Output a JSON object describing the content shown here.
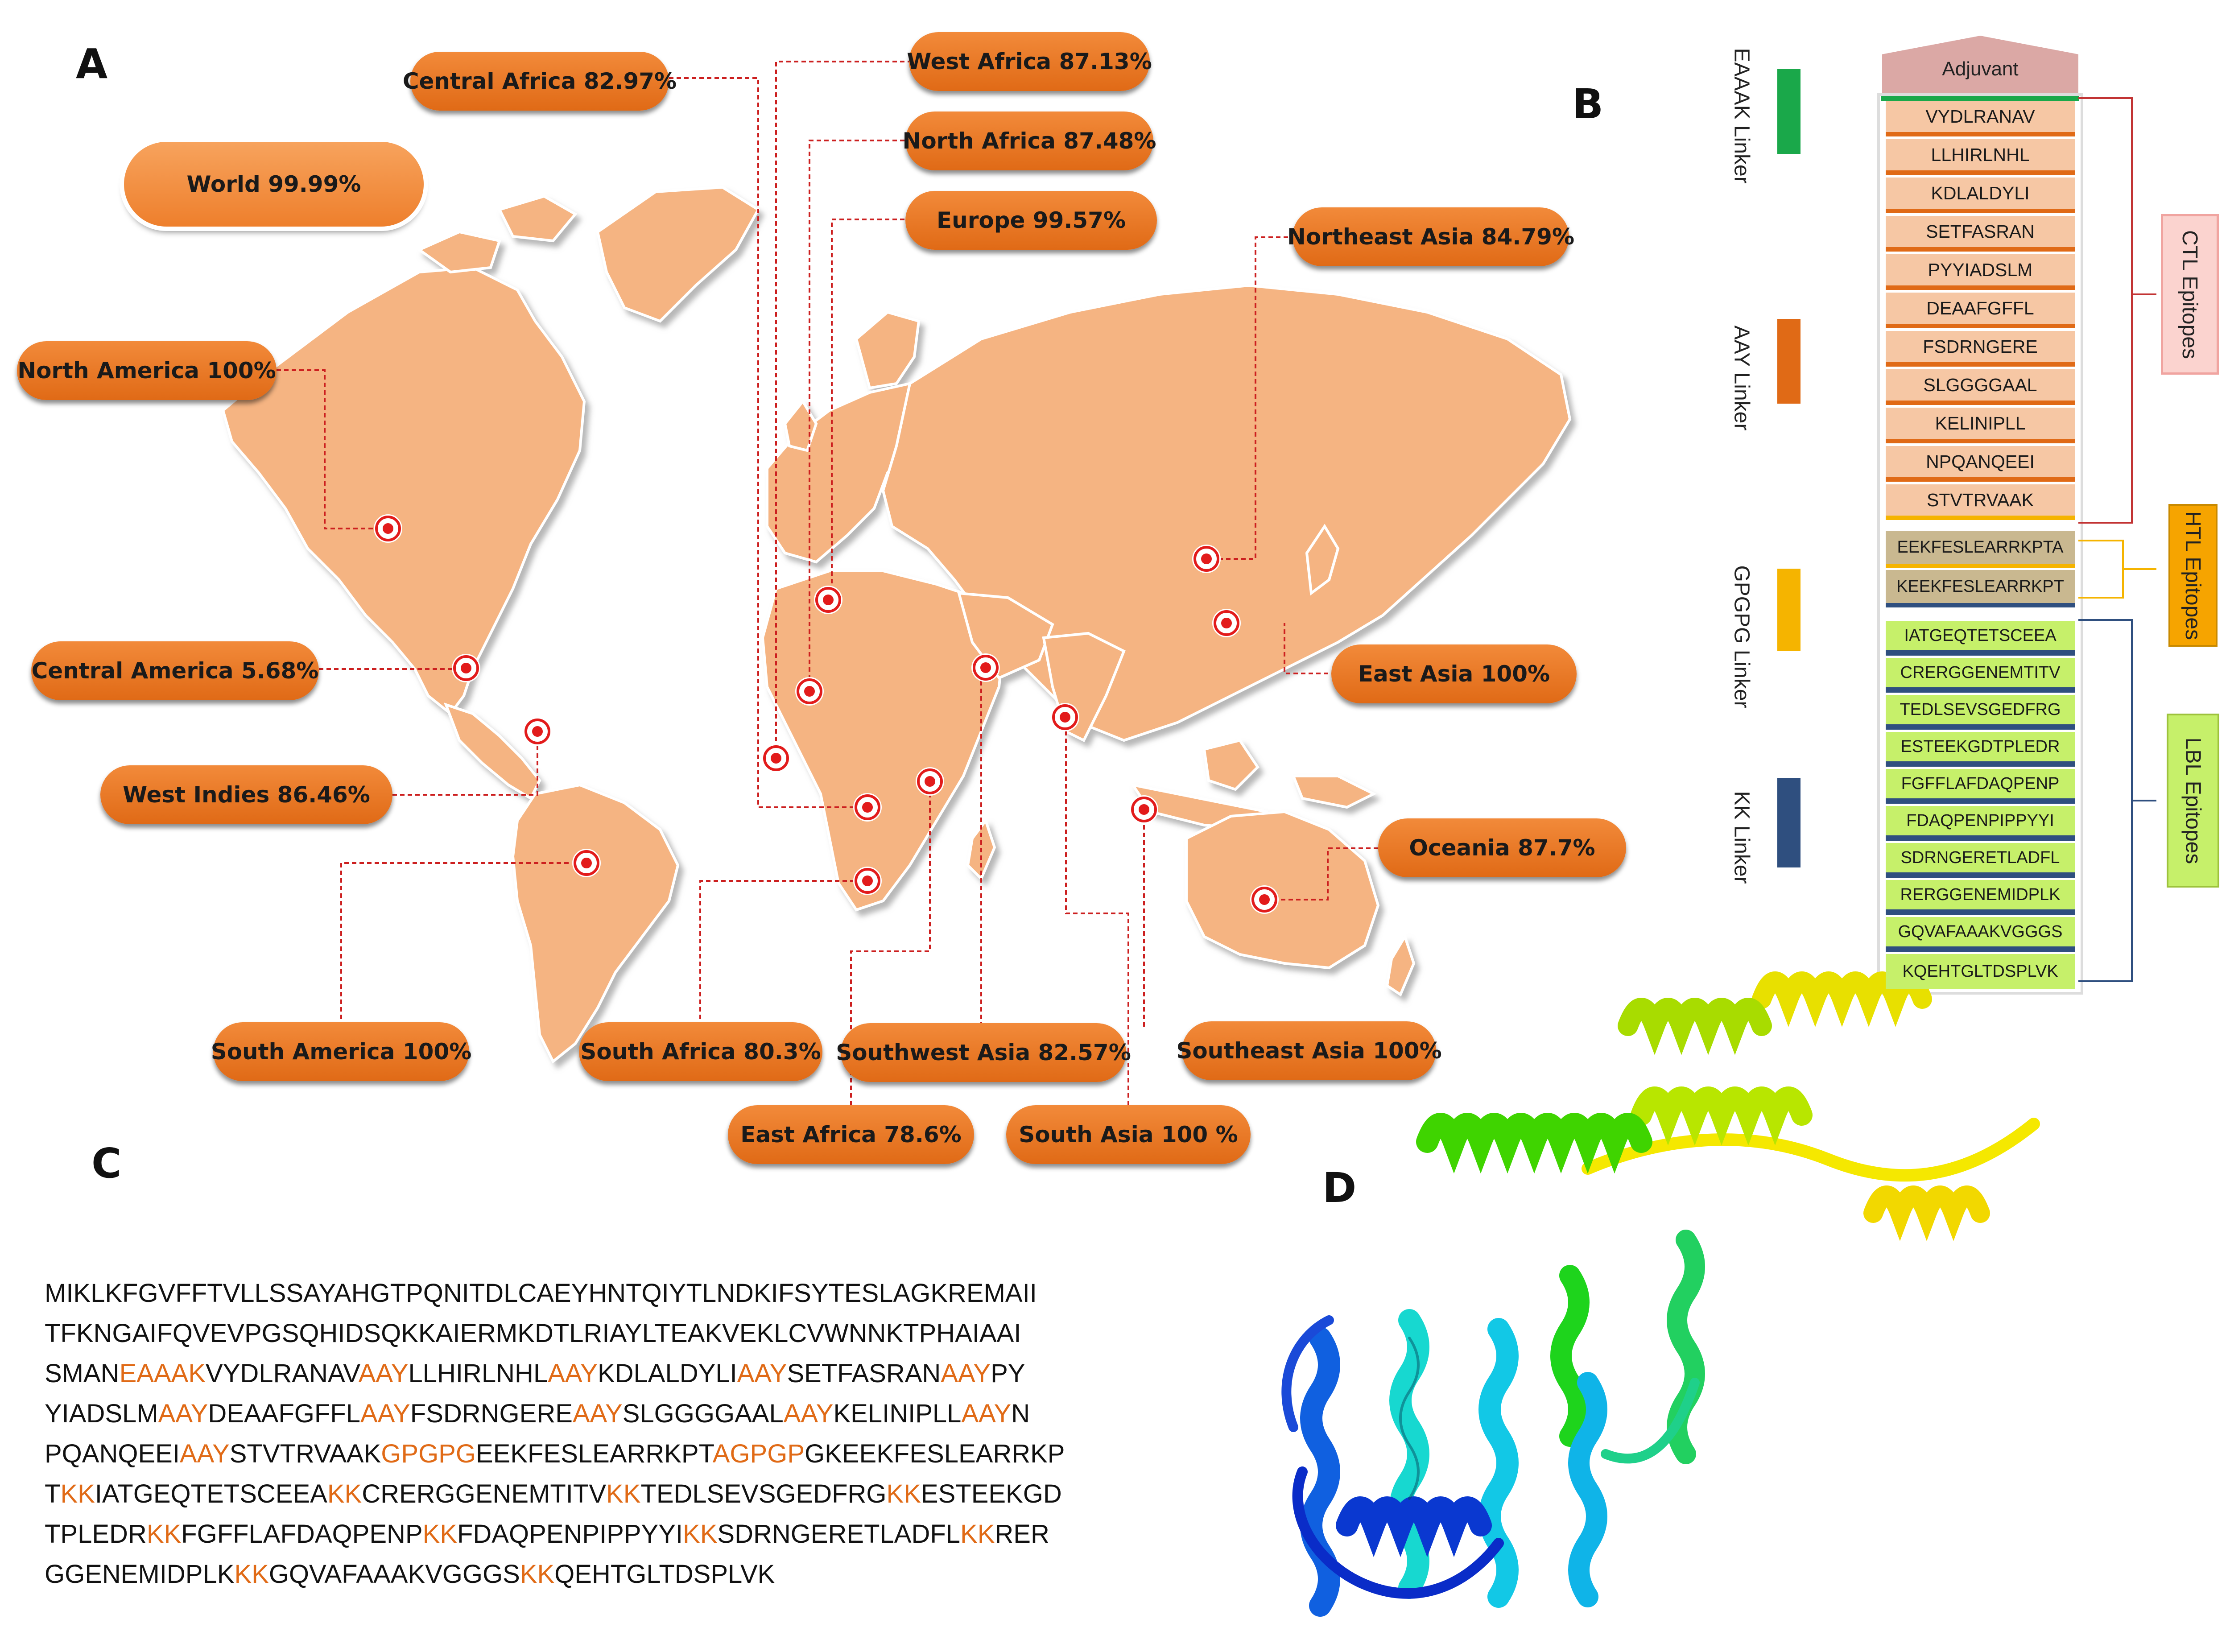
{
  "panels": {
    "a": "A",
    "b": "B",
    "c": "C",
    "d": "D"
  },
  "world": "World 99.99%",
  "regions": [
    {
      "id": "west-africa",
      "label": "West Africa 87.13%"
    },
    {
      "id": "central-africa",
      "label": "Central Africa 82.97%"
    },
    {
      "id": "north-africa",
      "label": "North Africa 87.48%"
    },
    {
      "id": "europe",
      "label": "Europe 99.57%"
    },
    {
      "id": "northeast-asia",
      "label": "Northeast Asia 84.79%"
    },
    {
      "id": "north-america",
      "label": "North America 100%"
    },
    {
      "id": "central-america",
      "label": "Central America 5.68%"
    },
    {
      "id": "west-indies",
      "label": "West Indies 86.46%"
    },
    {
      "id": "east-asia",
      "label": "East Asia 100%"
    },
    {
      "id": "oceania",
      "label": "Oceania 87.7%"
    },
    {
      "id": "south-america",
      "label": "South America 100%"
    },
    {
      "id": "south-africa",
      "label": "South Africa 80.3%"
    },
    {
      "id": "southwest-asia",
      "label": "Southwest Asia 82.57%"
    },
    {
      "id": "southeast-asia",
      "label": "Southeast Asia 100%"
    },
    {
      "id": "east-africa",
      "label": "East Africa 78.6%"
    },
    {
      "id": "south-asia",
      "label": "South Asia 100 %"
    }
  ],
  "construct": {
    "adjuvant": "Adjuvant",
    "linkers": [
      {
        "label": "EAAAK Linker",
        "color": "#1aa84a"
      },
      {
        "label": "AAY Linker",
        "color": "#e06a16"
      },
      {
        "label": "GPGPG Linker",
        "color": "#f5b400"
      },
      {
        "label": "KK Linker",
        "color": "#2f4f7f"
      }
    ],
    "ctl": [
      "VYDLRANAV",
      "LLHIRLNHL",
      "KDLALDYLI",
      "SETFASRAN",
      "PYYIADSLM",
      "DEAAFGFFL",
      "FSDRNGERE",
      "SLGGGGAAL",
      "KELINIPLL",
      "NPQANQEEI",
      "STVTRVAAK"
    ],
    "htl": [
      "EEKFESLEARRKPTA",
      "KEEKFESLEARRKPT"
    ],
    "lbl": [
      "IATGEQTETSCEEA",
      "CRERGGENEMTITV",
      "TEDLSEVSGEDFRG",
      "ESTEEKGDTPLEDR",
      "FGFFLAFDAQPENP",
      "FDAQPENPIPPYYI",
      "SDRNGERETLADFL",
      "RERGGENEMIDPLK",
      "GQVAFAAAKVGGGS",
      "KQEHTGLTDSPLVK"
    ],
    "groups": {
      "ctl": "CTL Epitopes",
      "htl": "HTL Epitopes",
      "lbl": "LBL Epitopes"
    }
  },
  "sequence_lines": [
    "MIKLKFGVFFTVLLSSAYAHGTPQNITDLCAEYHNTQIYTLNDKIFSYTESLAGKREMAII",
    "TFKNGAIFQVEVPGSQHIDSQKKAIERMKDTLRIAYLTEAKVEKLCVWNNKTPHAIAAI",
    "SMANEAAAKVYDLRANAVAAYLLHIRLNHLAAYKDLALDYLIAAYSETFASRANAAYPY",
    "YIADSLMAAYDEAAFGFFLAAYFSDRNGEREAAYSLGGGGAALAAYKELINIPLLAAYN",
    "PQANQEEIAAYSTVTRVAAKGPGPGEEKFESLEARRKPTAGPGPGKEEKFESLEARRKP",
    "TKKIATGEQTETSCEEAKKCRERGGENEMTITVKKTEDLSEVSGEDFRGKKESTEEKGD",
    "TPLEDRKKFGFFLAFDAQPENPKKFDAQPENPIPPYYIKKSDRNGERETLADFLKKRER",
    "GGENEMIDPLKKKGQVAFAAAKVGGGSKKQEHTGLTDSPLVK"
  ],
  "colors": {
    "map": "#f5b482",
    "pill": "#ec7a26",
    "leader": "#cc1f1f",
    "linker_text": "#e06a16"
  }
}
